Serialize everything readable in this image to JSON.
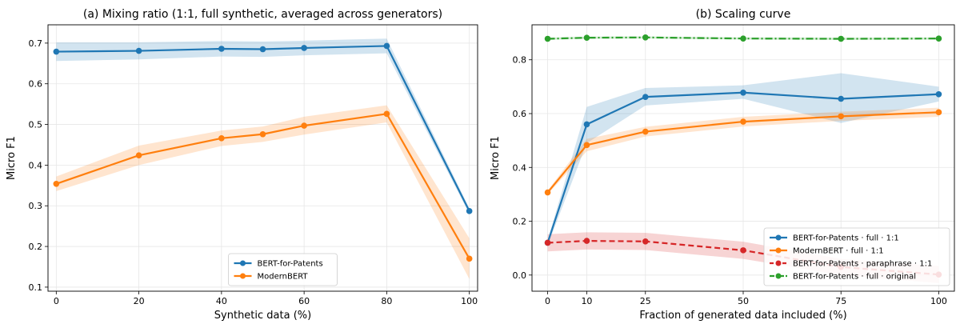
{
  "chart_data": [
    {
      "type": "line",
      "title": "(a) Mixing ratio (1:1, full synthetic, averaged across generators)",
      "xlabel": "Synthetic data (%)",
      "ylabel": "Micro F1",
      "xlim": [
        -2,
        102
      ],
      "ylim": [
        0.09,
        0.745
      ],
      "xticks": [
        0,
        20,
        40,
        60,
        80,
        100
      ],
      "yticks": [
        0.1,
        0.2,
        0.3,
        0.4,
        0.5,
        0.6,
        0.7
      ],
      "x": [
        0,
        20,
        40,
        50,
        60,
        80,
        100
      ],
      "grid": true,
      "legend_position": "lower-center",
      "series": [
        {
          "name": "BERT-for-Patents",
          "color": "#1f77b4",
          "linestyle": "solid",
          "values": [
            0.679,
            0.681,
            0.686,
            0.685,
            0.688,
            0.693,
            0.287
          ],
          "lower": [
            0.656,
            0.66,
            0.667,
            0.666,
            0.67,
            0.675,
            0.28
          ],
          "upper": [
            0.702,
            0.702,
            0.705,
            0.704,
            0.706,
            0.711,
            0.294
          ]
        },
        {
          "name": "ModernBERT",
          "color": "#ff7f0e",
          "linestyle": "solid",
          "values": [
            0.354,
            0.424,
            0.466,
            0.476,
            0.497,
            0.526,
            0.17
          ],
          "lower": [
            0.336,
            0.4,
            0.447,
            0.457,
            0.475,
            0.505,
            0.12
          ],
          "upper": [
            0.372,
            0.448,
            0.485,
            0.495,
            0.519,
            0.547,
            0.22
          ]
        }
      ]
    },
    {
      "type": "line",
      "title": "(b) Scaling curve",
      "xlabel": "Fraction of generated data included (%)",
      "ylabel": "Micro F1",
      "xlim": [
        -4,
        104
      ],
      "ylim": [
        -0.06,
        0.93
      ],
      "xticks": [
        0,
        10,
        25,
        50,
        75,
        100
      ],
      "yticks": [
        0.0,
        0.2,
        0.4,
        0.6,
        0.8
      ],
      "x": [
        0,
        10,
        25,
        50,
        75,
        100
      ],
      "grid": true,
      "legend_position": "lower-right",
      "series": [
        {
          "name": "BERT-for-Patents · full · 1:1",
          "color": "#1f77b4",
          "linestyle": "solid",
          "values": [
            0.12,
            0.56,
            0.662,
            0.678,
            0.655,
            0.672
          ],
          "lower": [
            0.11,
            0.49,
            0.63,
            0.655,
            0.565,
            0.645
          ],
          "upper": [
            0.13,
            0.625,
            0.695,
            0.705,
            0.75,
            0.7
          ]
        },
        {
          "name": "ModernBERT · full · 1:1",
          "color": "#ff7f0e",
          "linestyle": "solid",
          "values": [
            0.307,
            0.483,
            0.533,
            0.57,
            0.59,
            0.605
          ],
          "lower": [
            0.3,
            0.46,
            0.515,
            0.552,
            0.573,
            0.588
          ],
          "upper": [
            0.314,
            0.506,
            0.551,
            0.588,
            0.607,
            0.622
          ]
        },
        {
          "name": "BERT-for-Patents · paraphrase · 1:1",
          "color": "#d62728",
          "linestyle": "dashed",
          "values": [
            0.12,
            0.127,
            0.125,
            0.092,
            0.03,
            0.002
          ],
          "lower": [
            0.088,
            0.095,
            0.093,
            0.06,
            0.0,
            -0.03
          ],
          "upper": [
            0.152,
            0.159,
            0.157,
            0.124,
            0.06,
            0.034
          ]
        },
        {
          "name": "BERT-for-Patents · full · original",
          "color": "#2ca02c",
          "linestyle": "dashdot",
          "values": [
            0.878,
            0.882,
            0.883,
            0.879,
            0.878,
            0.879
          ],
          "lower": [
            0.874,
            0.878,
            0.879,
            0.875,
            0.874,
            0.875
          ],
          "upper": [
            0.882,
            0.886,
            0.887,
            0.883,
            0.882,
            0.883
          ]
        }
      ]
    }
  ]
}
